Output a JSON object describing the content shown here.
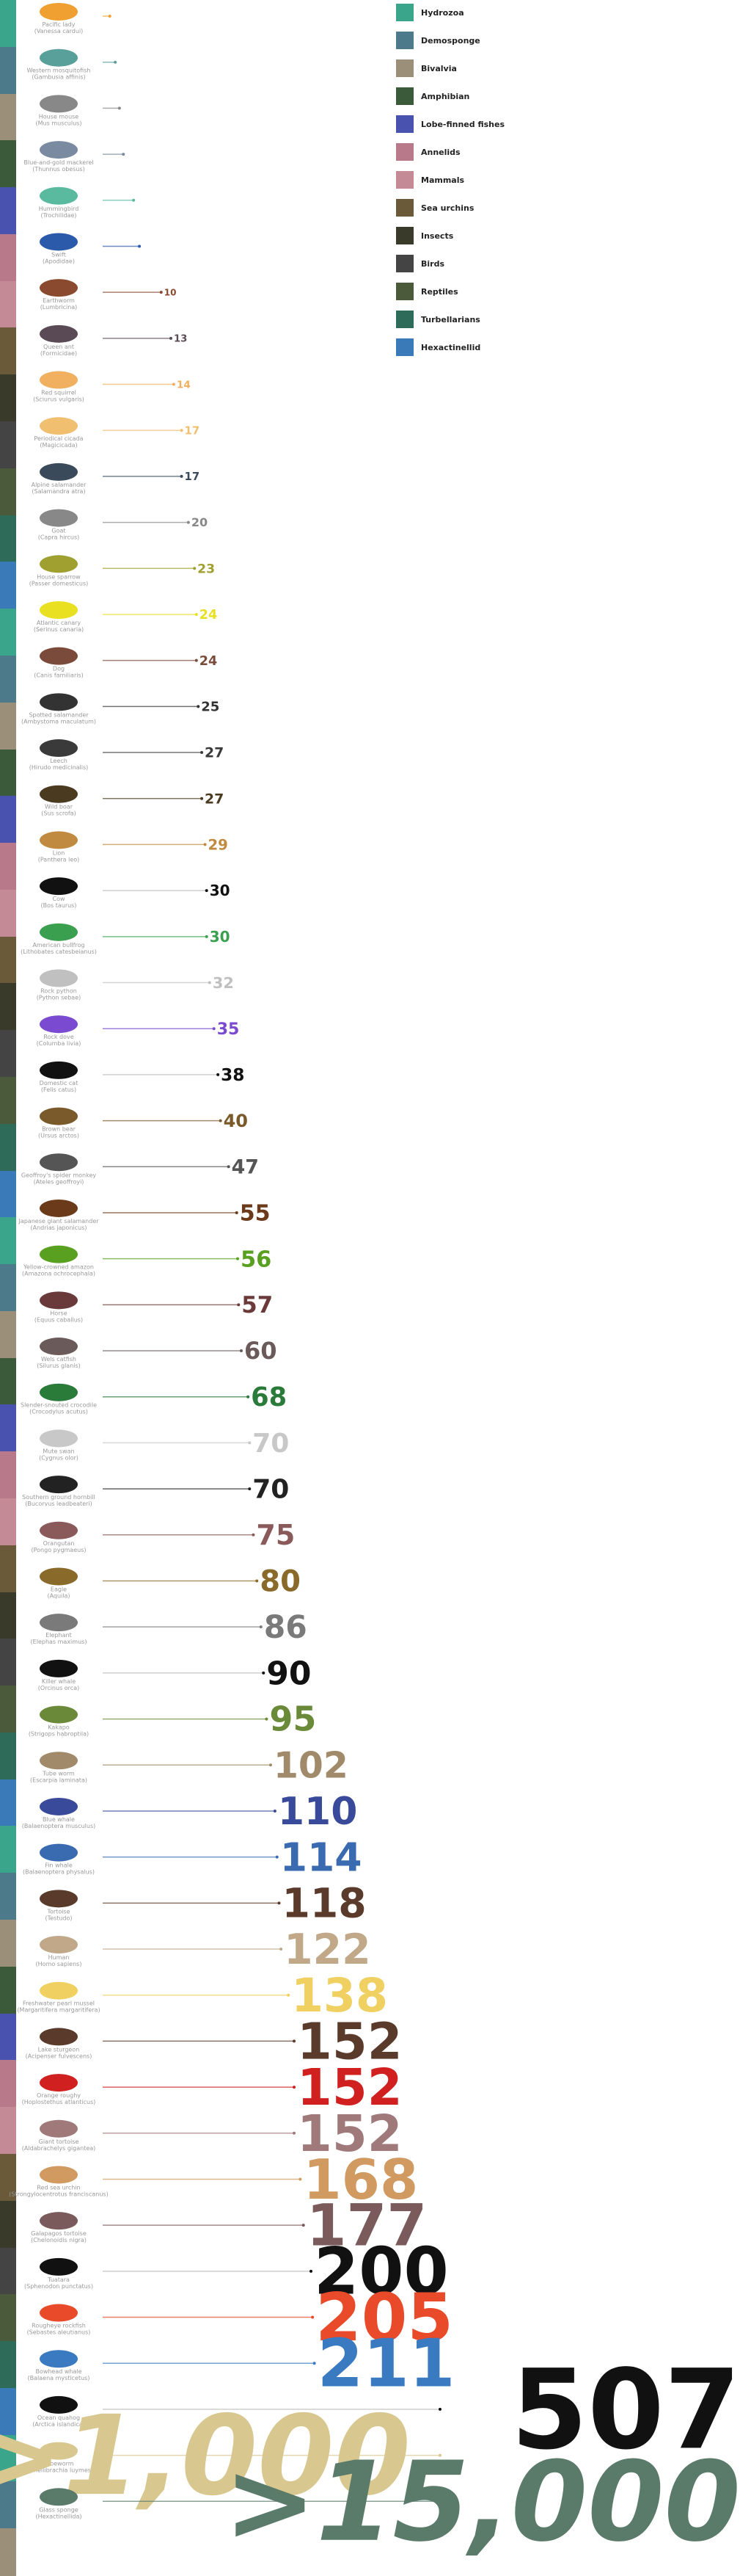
{
  "chart_data": {
    "type": "bar",
    "title": "",
    "xlabel": "",
    "ylabel": "",
    "categories": [
      "Hydrozoa",
      "Demosponge",
      "Bivalvia",
      "Amphibian",
      "Lobe-finned fishes",
      "Annelids",
      "Mammals",
      "Sea urchins",
      "Insects",
      "Birds",
      "Reptiles",
      "Turbellarians",
      "Hexactinellid"
    ],
    "legend_colors": [
      "#3aa58a",
      "#4c7a8a",
      "#9b8f7a",
      "#3b5a3a",
      "#4a52b0",
      "#b87a8a",
      "#c48a95",
      "#6b5a3a",
      "#3a3a2a",
      "#444444",
      "#4a5a3a",
      "#2e6b58",
      "#3a7ab8"
    ],
    "animals": [
      {
        "name": "Pacific lady",
        "sci": "(Vanessa cardui)",
        "value": 0.9,
        "label": "",
        "color": "#f0a030"
      },
      {
        "name": "Western mosquitofish",
        "sci": "(Gambusia affinis)",
        "value": 1.5,
        "label": "",
        "color": "#5aa09a"
      },
      {
        "name": "House mouse",
        "sci": "(Mus musculus)",
        "value": 2,
        "label": "",
        "color": "#888888"
      },
      {
        "name": "Blue-and-gold mackerel",
        "sci": "(Thunnus obesus)",
        "value": 2.5,
        "label": "",
        "color": "#7a8aa0"
      },
      {
        "name": "Hummingbird",
        "sci": "(Trochilidae)",
        "value": 4,
        "label": "",
        "color": "#5abaa0"
      },
      {
        "name": "Swift",
        "sci": "(Apodidae)",
        "value": 5,
        "label": "",
        "color": "#2b5aaa"
      },
      {
        "name": "Earthworm",
        "sci": "(Lumbricina)",
        "value": 10,
        "label": "10",
        "color": "#8a4a30"
      },
      {
        "name": "Queen ant",
        "sci": "(Formicidae)",
        "value": 13,
        "label": "13",
        "color": "#5a4a55"
      },
      {
        "name": "Red squirrel",
        "sci": "(Sciurus vulgaris)",
        "value": 14,
        "label": "14",
        "color": "#f0b060"
      },
      {
        "name": "Periodical cicada",
        "sci": "(Magicicada)",
        "value": 17,
        "label": "17",
        "color": "#f0c070"
      },
      {
        "name": "Alpine salamander",
        "sci": "(Salamandra atra)",
        "value": 17,
        "label": "17",
        "color": "#3a4a5a"
      },
      {
        "name": "Goat",
        "sci": "(Capra hircus)",
        "value": 20,
        "label": "20",
        "color": "#888888"
      },
      {
        "name": "House sparrow",
        "sci": "(Passer domesticus)",
        "value": 23,
        "label": "23",
        "color": "#a0a030"
      },
      {
        "name": "Atlantic canary",
        "sci": "(Serinus canaria)",
        "value": 24,
        "label": "24",
        "color": "#e8e020"
      },
      {
        "name": "Dog",
        "sci": "(Canis familiaris)",
        "value": 24,
        "label": "24",
        "color": "#7a4a3a"
      },
      {
        "name": "Spotted salamander",
        "sci": "(Ambystoma maculatum)",
        "value": 25,
        "label": "25",
        "color": "#333333"
      },
      {
        "name": "Leech",
        "sci": "(Hirudo medicinalis)",
        "value": 27,
        "label": "27",
        "color": "#3a3a3a"
      },
      {
        "name": "Wild boar",
        "sci": "(Sus scrofa)",
        "value": 27,
        "label": "27",
        "color": "#4a3a20"
      },
      {
        "name": "Lion",
        "sci": "(Panthera leo)",
        "value": 29,
        "label": "29",
        "color": "#c08a40"
      },
      {
        "name": "Cow",
        "sci": "(Bos taurus)",
        "value": 30,
        "label": "30",
        "color": "#111111"
      },
      {
        "name": "American bullfrog",
        "sci": "(Lithobates catesbeianus)",
        "value": 30,
        "label": "30",
        "color": "#3aa050"
      },
      {
        "name": "Rock python",
        "sci": "(Python sebae)",
        "value": 32,
        "label": "32",
        "color": "#c0c0c0"
      },
      {
        "name": "Rock dove",
        "sci": "(Columba livia)",
        "value": 35,
        "label": "35",
        "color": "#7a4ad0"
      },
      {
        "name": "Domestic cat",
        "sci": "(Felis catus)",
        "value": 38,
        "label": "38",
        "color": "#111111"
      },
      {
        "name": "Brown bear",
        "sci": "(Ursus arctos)",
        "value": 40,
        "label": "40",
        "color": "#7a5a2a"
      },
      {
        "name": "Geoffroy's spider monkey",
        "sci": "(Ateles geoffroyi)",
        "value": 47,
        "label": "47",
        "color": "#555555"
      },
      {
        "name": "Japanese giant salamander",
        "sci": "(Andrias japonicus)",
        "value": 55,
        "label": "55",
        "color": "#6a3a1a"
      },
      {
        "name": "Yellow-crowned amazon",
        "sci": "(Amazona ochrocephala)",
        "value": 56,
        "label": "56",
        "color": "#5aa020"
      },
      {
        "name": "Horse",
        "sci": "(Equus caballus)",
        "value": 57,
        "label": "57",
        "color": "#6a3a3a"
      },
      {
        "name": "Wels catfish",
        "sci": "(Silurus glanis)",
        "value": 60,
        "label": "60",
        "color": "#6a5a5a"
      },
      {
        "name": "Slender-snouted crocodile",
        "sci": "(Crocodylus acutus)",
        "value": 68,
        "label": "68",
        "color": "#2a7a3a"
      },
      {
        "name": "Mute swan",
        "sci": "(Cygnus olor)",
        "value": 70,
        "label": "70",
        "color": "#c8c8c8"
      },
      {
        "name": "Southern ground hornbill",
        "sci": "(Bucorvus leadbeateri)",
        "value": 70,
        "label": "70",
        "color": "#222222"
      },
      {
        "name": "Orangutan",
        "sci": "(Pongo pygmaeus)",
        "value": 75,
        "label": "75",
        "color": "#8a5a5a"
      },
      {
        "name": "Eagle",
        "sci": "(Aquila)",
        "value": 80,
        "label": "80",
        "color": "#8a6a2a"
      },
      {
        "name": "Elephant",
        "sci": "(Elephas maximus)",
        "value": 86,
        "label": "86",
        "color": "#7a7a7a"
      },
      {
        "name": "Killer whale",
        "sci": "(Orcinus orca)",
        "value": 90,
        "label": "90",
        "color": "#111111"
      },
      {
        "name": "Kakapo",
        "sci": "(Strigops habroptila)",
        "value": 95,
        "label": "95",
        "color": "#6a8a3a"
      },
      {
        "name": "Tube worm",
        "sci": "(Escarpia laminata)",
        "value": 102,
        "label": "102",
        "color": "#a08a6a"
      },
      {
        "name": "Blue whale",
        "sci": "(Balaenoptera musculus)",
        "value": 110,
        "label": "110",
        "color": "#3a4a9a"
      },
      {
        "name": "Fin whale",
        "sci": "(Balaenoptera physalus)",
        "value": 114,
        "label": "114",
        "color": "#3a6ab0"
      },
      {
        "name": "Tortoise",
        "sci": "(Testudo)",
        "value": 118,
        "label": "118",
        "color": "#5a3a2a"
      },
      {
        "name": "Human",
        "sci": "(Homo sapiens)",
        "value": 122,
        "label": "122",
        "color": "#c0a888"
      },
      {
        "name": "Freshwater pearl mussel",
        "sci": "(Margaritifera margaritifera)",
        "value": 138,
        "label": "138",
        "color": "#f0d060"
      },
      {
        "name": "Lake sturgeon",
        "sci": "(Acipenser fulvescens)",
        "value": 152,
        "label": "152",
        "color": "#5a3a2a"
      },
      {
        "name": "Orange roughy",
        "sci": "(Hoplostethus atlanticus)",
        "value": 152,
        "label": "152",
        "color": "#d02020"
      },
      {
        "name": "Giant tortoise",
        "sci": "(Aldabrachelys gigantea)",
        "value": 152,
        "label": "152",
        "color": "#a07a7a"
      },
      {
        "name": "Red sea urchin",
        "sci": "(Strongylocentrotus franciscanus)",
        "value": 168,
        "label": "168",
        "color": "#d09a60"
      },
      {
        "name": "Galapagos tortoise",
        "sci": "(Chelonoidis nigra)",
        "value": 177,
        "label": "177",
        "color": "#7a5a5a"
      },
      {
        "name": "Tuatara",
        "sci": "(Sphenodon punctatus)",
        "value": 200,
        "label": "200",
        "color": "#111111"
      },
      {
        "name": "Rougheye rockfish",
        "sci": "(Sebastes aleutianus)",
        "value": 205,
        "label": "205",
        "color": "#e84a2a"
      },
      {
        "name": "Bowhead whale",
        "sci": "(Balaena mysticetus)",
        "value": 211,
        "label": "211",
        "color": "#3a7ac0"
      },
      {
        "name": "Ocean quahog",
        "sci": "(Arctica islandica)",
        "value": 507,
        "label": "507",
        "color": "#111111"
      },
      {
        "name": "Tubeworm",
        "sci": "(Lamellibrachia luymesi)",
        "value": 1000,
        "label": ">1,000",
        "color": "#d8c890"
      },
      {
        "name": "Glass sponge",
        "sci": "(Hexactinellida)",
        "value": 15000,
        "label": ">15,000",
        "color": "#5a7a6a"
      }
    ]
  }
}
